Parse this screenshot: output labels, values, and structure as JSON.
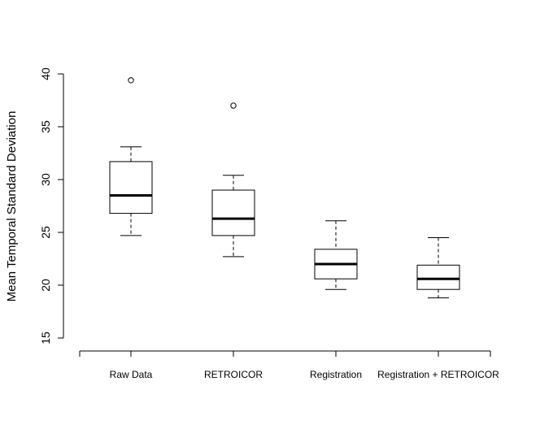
{
  "chart_data": {
    "type": "box",
    "title": "",
    "xlabel": "",
    "ylabel": "Mean Temporal Standard Deviation",
    "ylim": [
      15,
      40
    ],
    "yticks": [
      15,
      20,
      25,
      30,
      35,
      40
    ],
    "grid": false,
    "categories": [
      "Raw Data",
      "RETROICOR",
      "Registration",
      "Registration + RETROICOR"
    ],
    "boxes": [
      {
        "whisker_low": 24.7,
        "q1": 26.8,
        "median": 28.5,
        "q3": 31.7,
        "whisker_high": 33.1,
        "outliers": [
          39.4
        ]
      },
      {
        "whisker_low": 22.7,
        "q1": 24.7,
        "median": 26.3,
        "q3": 29.0,
        "whisker_high": 30.4,
        "outliers": [
          37.0
        ]
      },
      {
        "whisker_low": 19.6,
        "q1": 20.6,
        "median": 22.0,
        "q3": 23.4,
        "whisker_high": 26.1,
        "outliers": []
      },
      {
        "whisker_low": 18.8,
        "q1": 19.6,
        "median": 20.6,
        "q3": 21.9,
        "whisker_high": 24.5,
        "outliers": []
      }
    ]
  }
}
